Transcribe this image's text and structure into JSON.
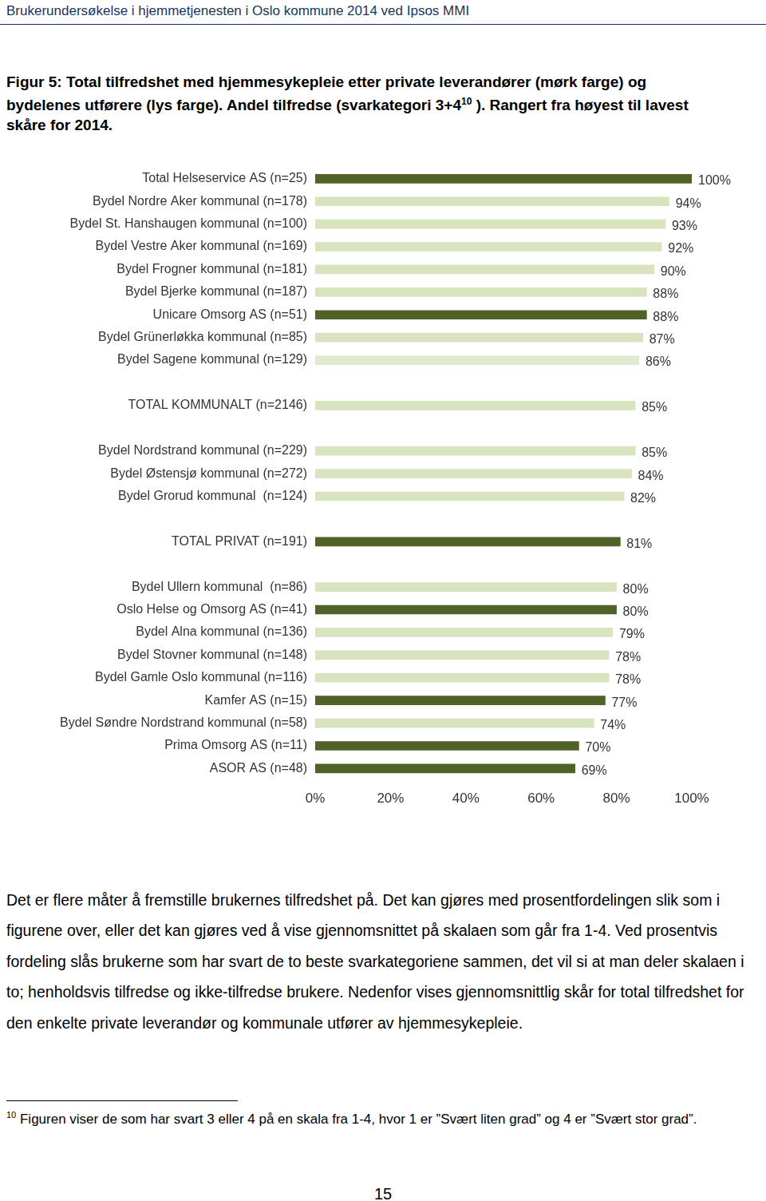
{
  "header": "Brukerundersøkelse i hjemmetjenesten i Oslo kommune 2014 ved Ipsos MMI",
  "caption": {
    "text": "Figur 5: Total tilfredshet med hjemmesykepleie etter private leverandører (mørk farge) og bydelenes utførere (lys farge). Andel tilfredse (svarkategori 3+4",
    "superscript": "10",
    "text_after": " ). Rangert fra høyest til lavest skåre for 2014."
  },
  "chart_data": {
    "type": "bar",
    "orientation": "horizontal",
    "categories": [
      "Total Helseservice AS (n=25)",
      "Bydel Nordre Aker kommunal (n=178)",
      "Bydel St. Hanshaugen kommunal (n=100)",
      "Bydel Vestre Aker kommunal (n=169)",
      "Bydel Frogner kommunal (n=181)",
      "Bydel Bjerke kommunal (n=187)",
      "Unicare Omsorg AS (n=51)",
      "Bydel Grünerløkka kommunal (n=85)",
      "Bydel Sagene kommunal (n=129)",
      null,
      "TOTAL KOMMUNALT (n=2146)",
      null,
      "Bydel Nordstrand kommunal (n=229)",
      "Bydel Østensjø kommunal (n=272)",
      "Bydel Grorud kommunal  (n=124)",
      null,
      "TOTAL PRIVAT (n=191)",
      null,
      "Bydel Ullern kommunal  (n=86)",
      "Oslo Helse og Omsorg AS (n=41)",
      "Bydel Alna kommunal (n=136)",
      "Bydel Stovner kommunal (n=148)",
      "Bydel Gamle Oslo kommunal (n=116)",
      "Kamfer AS (n=15)",
      "Bydel Søndre Nordstrand kommunal (n=58)",
      "Prima Omsorg AS (n=11)",
      "ASOR AS (n=48)"
    ],
    "values": [
      100,
      94,
      93,
      92,
      90,
      88,
      88,
      87,
      86,
      null,
      85,
      null,
      85,
      84,
      82,
      null,
      81,
      null,
      80,
      80,
      79,
      78,
      78,
      77,
      74,
      70,
      69
    ],
    "value_labels": [
      "100%",
      "94%",
      "93%",
      "92%",
      "90%",
      "88%",
      "88%",
      "87%",
      "86%",
      null,
      "85%",
      null,
      "85%",
      "84%",
      "82%",
      null,
      "81%",
      null,
      "80%",
      "80%",
      "79%",
      "78%",
      "78%",
      "77%",
      "74%",
      "70%",
      "69%"
    ],
    "colors": [
      "#4f6228",
      "#d7e4bd",
      "#d7e4bd",
      "#d7e4bd",
      "#d7e4bd",
      "#d7e4bd",
      "#4f6228",
      "#d7e4bd",
      "#e1ead0",
      null,
      "#d7e4bd",
      null,
      "#d7e4bd",
      "#d7e4bd",
      "#d7e4bd",
      null,
      "#4f6228",
      null,
      "#d7e4bd",
      "#4f6228",
      "#d7e4bd",
      "#d7e4bd",
      "#d7e4bd",
      "#4f6228",
      "#d7e4bd",
      "#4f6228",
      "#4f6228"
    ],
    "xlim": [
      0,
      100
    ],
    "xticks": [
      {
        "value": 0,
        "label": "0%"
      },
      {
        "value": 20,
        "label": "20%"
      },
      {
        "value": 40,
        "label": "40%"
      },
      {
        "value": 60,
        "label": "60%"
      },
      {
        "value": 80,
        "label": "80%"
      },
      {
        "value": 100,
        "label": "100%"
      }
    ],
    "grid": false,
    "data_labels": true
  },
  "body": "Det er flere måter å fremstille brukernes tilfredshet på. Det kan gjøres med prosentfordelingen slik som i figurene over, eller det kan gjøres ved å vise gjennomsnittet på skalaen som går fra 1-4. Ved prosentvis fordeling slås brukerne som har svart de to beste svarkategoriene sammen, det vil si at man deler skalaen i to; henholdsvis tilfredse og ikke-tilfredse brukere. Nedenfor vises gjennomsnittlig skår for total tilfredshet for den enkelte private leverandør og kommunale utfører av hjemmesykepleie.",
  "footnote": {
    "number": "10",
    "text": " Figuren viser de som har svart 3 eller 4 på en skala fra 1-4, hvor 1 er ”Svært liten grad” og 4 er ”Svært stor grad”."
  },
  "page_number": "15"
}
